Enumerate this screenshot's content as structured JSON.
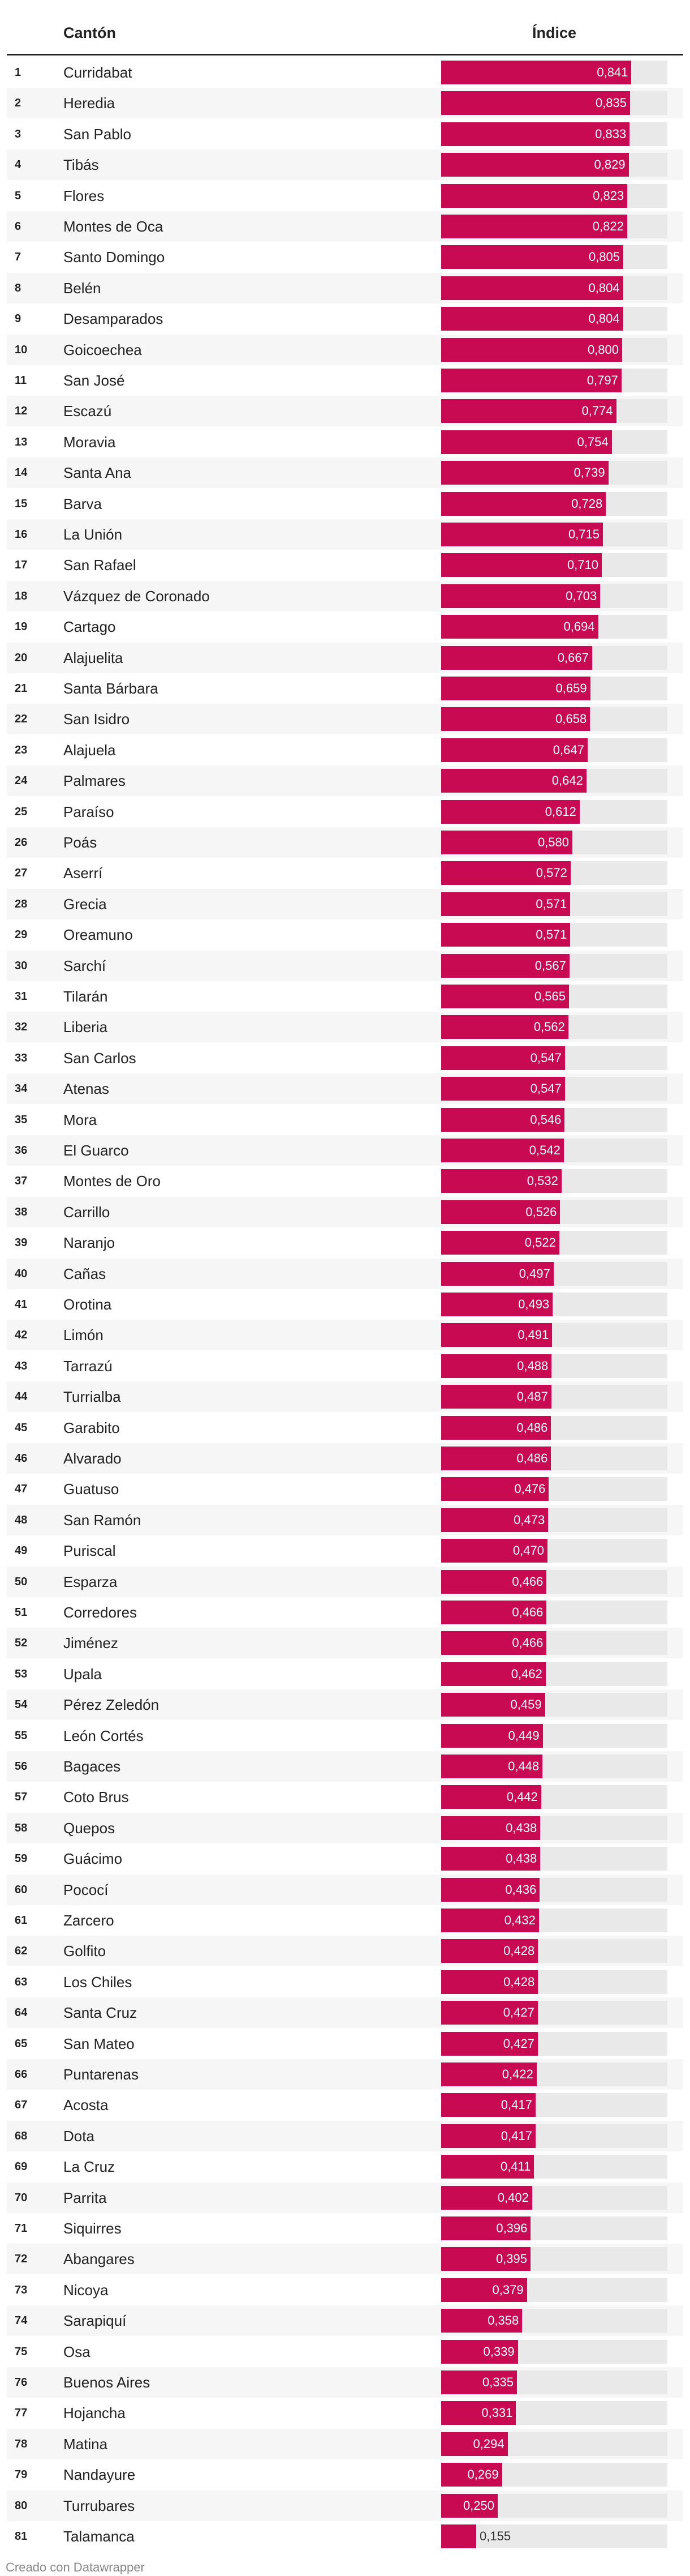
{
  "chart_data": {
    "type": "bar",
    "orientation": "horizontal",
    "columns": {
      "name": "Cantón",
      "value": "Índice"
    },
    "xlim": [
      0,
      1
    ],
    "rows": [
      {
        "rank": "1",
        "name": "Curridabat",
        "value": 0.841,
        "label": "0,841"
      },
      {
        "rank": "2",
        "name": "Heredia",
        "value": 0.835,
        "label": "0,835"
      },
      {
        "rank": "3",
        "name": "San Pablo",
        "value": 0.833,
        "label": "0,833"
      },
      {
        "rank": "4",
        "name": "Tibás",
        "value": 0.829,
        "label": "0,829"
      },
      {
        "rank": "5",
        "name": "Flores",
        "value": 0.823,
        "label": "0,823"
      },
      {
        "rank": "6",
        "name": "Montes de Oca",
        "value": 0.822,
        "label": "0,822"
      },
      {
        "rank": "7",
        "name": "Santo Domingo",
        "value": 0.805,
        "label": "0,805"
      },
      {
        "rank": "8",
        "name": "Belén",
        "value": 0.804,
        "label": "0,804"
      },
      {
        "rank": "9",
        "name": "Desamparados",
        "value": 0.804,
        "label": "0,804"
      },
      {
        "rank": "10",
        "name": "Goicoechea",
        "value": 0.8,
        "label": "0,800"
      },
      {
        "rank": "11",
        "name": "San José",
        "value": 0.797,
        "label": "0,797"
      },
      {
        "rank": "12",
        "name": "Escazú",
        "value": 0.774,
        "label": "0,774"
      },
      {
        "rank": "13",
        "name": "Moravia",
        "value": 0.754,
        "label": "0,754"
      },
      {
        "rank": "14",
        "name": "Santa Ana",
        "value": 0.739,
        "label": "0,739"
      },
      {
        "rank": "15",
        "name": "Barva",
        "value": 0.728,
        "label": "0,728"
      },
      {
        "rank": "16",
        "name": "La Unión",
        "value": 0.715,
        "label": "0,715"
      },
      {
        "rank": "17",
        "name": "San Rafael",
        "value": 0.71,
        "label": "0,710"
      },
      {
        "rank": "18",
        "name": "Vázquez de Coronado",
        "value": 0.703,
        "label": "0,703"
      },
      {
        "rank": "19",
        "name": "Cartago",
        "value": 0.694,
        "label": "0,694"
      },
      {
        "rank": "20",
        "name": "Alajuelita",
        "value": 0.667,
        "label": "0,667"
      },
      {
        "rank": "21",
        "name": "Santa Bárbara",
        "value": 0.659,
        "label": "0,659"
      },
      {
        "rank": "22",
        "name": "San Isidro",
        "value": 0.658,
        "label": "0,658"
      },
      {
        "rank": "23",
        "name": "Alajuela",
        "value": 0.647,
        "label": "0,647"
      },
      {
        "rank": "24",
        "name": "Palmares",
        "value": 0.642,
        "label": "0,642"
      },
      {
        "rank": "25",
        "name": "Paraíso",
        "value": 0.612,
        "label": "0,612"
      },
      {
        "rank": "26",
        "name": "Poás",
        "value": 0.58,
        "label": "0,580"
      },
      {
        "rank": "27",
        "name": "Aserrí",
        "value": 0.572,
        "label": "0,572"
      },
      {
        "rank": "28",
        "name": "Grecia",
        "value": 0.571,
        "label": "0,571"
      },
      {
        "rank": "29",
        "name": "Oreamuno",
        "value": 0.571,
        "label": "0,571"
      },
      {
        "rank": "30",
        "name": "Sarchí",
        "value": 0.567,
        "label": "0,567"
      },
      {
        "rank": "31",
        "name": "Tilarán",
        "value": 0.565,
        "label": "0,565"
      },
      {
        "rank": "32",
        "name": "Liberia",
        "value": 0.562,
        "label": "0,562"
      },
      {
        "rank": "33",
        "name": "San Carlos",
        "value": 0.547,
        "label": "0,547"
      },
      {
        "rank": "34",
        "name": "Atenas",
        "value": 0.547,
        "label": "0,547"
      },
      {
        "rank": "35",
        "name": "Mora",
        "value": 0.546,
        "label": "0,546"
      },
      {
        "rank": "36",
        "name": "El Guarco",
        "value": 0.542,
        "label": "0,542"
      },
      {
        "rank": "37",
        "name": "Montes de Oro",
        "value": 0.532,
        "label": "0,532"
      },
      {
        "rank": "38",
        "name": "Carrillo",
        "value": 0.526,
        "label": "0,526"
      },
      {
        "rank": "39",
        "name": "Naranjo",
        "value": 0.522,
        "label": "0,522"
      },
      {
        "rank": "40",
        "name": "Cañas",
        "value": 0.497,
        "label": "0,497"
      },
      {
        "rank": "41",
        "name": "Orotina",
        "value": 0.493,
        "label": "0,493"
      },
      {
        "rank": "42",
        "name": "Limón",
        "value": 0.491,
        "label": "0,491"
      },
      {
        "rank": "43",
        "name": "Tarrazú",
        "value": 0.488,
        "label": "0,488"
      },
      {
        "rank": "44",
        "name": "Turrialba",
        "value": 0.487,
        "label": "0,487"
      },
      {
        "rank": "45",
        "name": "Garabito",
        "value": 0.486,
        "label": "0,486"
      },
      {
        "rank": "46",
        "name": "Alvarado",
        "value": 0.486,
        "label": "0,486"
      },
      {
        "rank": "47",
        "name": "Guatuso",
        "value": 0.476,
        "label": "0,476"
      },
      {
        "rank": "48",
        "name": "San Ramón",
        "value": 0.473,
        "label": "0,473"
      },
      {
        "rank": "49",
        "name": "Puriscal",
        "value": 0.47,
        "label": "0,470"
      },
      {
        "rank": "50",
        "name": "Esparza",
        "value": 0.466,
        "label": "0,466"
      },
      {
        "rank": "51",
        "name": "Corredores",
        "value": 0.466,
        "label": "0,466"
      },
      {
        "rank": "52",
        "name": "Jiménez",
        "value": 0.466,
        "label": "0,466"
      },
      {
        "rank": "53",
        "name": "Upala",
        "value": 0.462,
        "label": "0,462"
      },
      {
        "rank": "54",
        "name": "Pérez Zeledón",
        "value": 0.459,
        "label": "0,459"
      },
      {
        "rank": "55",
        "name": "León Cortés",
        "value": 0.449,
        "label": "0,449"
      },
      {
        "rank": "56",
        "name": "Bagaces",
        "value": 0.448,
        "label": "0,448"
      },
      {
        "rank": "57",
        "name": "Coto Brus",
        "value": 0.442,
        "label": "0,442"
      },
      {
        "rank": "58",
        "name": "Quepos",
        "value": 0.438,
        "label": "0,438"
      },
      {
        "rank": "59",
        "name": "Guácimo",
        "value": 0.438,
        "label": "0,438"
      },
      {
        "rank": "60",
        "name": "Pococí",
        "value": 0.436,
        "label": "0,436"
      },
      {
        "rank": "61",
        "name": "Zarcero",
        "value": 0.432,
        "label": "0,432"
      },
      {
        "rank": "62",
        "name": "Golfito",
        "value": 0.428,
        "label": "0,428"
      },
      {
        "rank": "63",
        "name": "Los Chiles",
        "value": 0.428,
        "label": "0,428"
      },
      {
        "rank": "64",
        "name": "Santa Cruz",
        "value": 0.427,
        "label": "0,427"
      },
      {
        "rank": "65",
        "name": "San Mateo",
        "value": 0.427,
        "label": "0,427"
      },
      {
        "rank": "66",
        "name": "Puntarenas",
        "value": 0.422,
        "label": "0,422"
      },
      {
        "rank": "67",
        "name": "Acosta",
        "value": 0.417,
        "label": "0,417"
      },
      {
        "rank": "68",
        "name": "Dota",
        "value": 0.417,
        "label": "0,417"
      },
      {
        "rank": "69",
        "name": "La Cruz",
        "value": 0.411,
        "label": "0,411"
      },
      {
        "rank": "70",
        "name": "Parrita",
        "value": 0.402,
        "label": "0,402"
      },
      {
        "rank": "71",
        "name": "Siquirres",
        "value": 0.396,
        "label": "0,396"
      },
      {
        "rank": "72",
        "name": "Abangares",
        "value": 0.395,
        "label": "0,395"
      },
      {
        "rank": "73",
        "name": "Nicoya",
        "value": 0.379,
        "label": "0,379"
      },
      {
        "rank": "74",
        "name": "Sarapiquí",
        "value": 0.358,
        "label": "0,358"
      },
      {
        "rank": "75",
        "name": "Osa",
        "value": 0.339,
        "label": "0,339"
      },
      {
        "rank": "76",
        "name": "Buenos Aires",
        "value": 0.335,
        "label": "0,335"
      },
      {
        "rank": "77",
        "name": "Hojancha",
        "value": 0.331,
        "label": "0,331"
      },
      {
        "rank": "78",
        "name": "Matina",
        "value": 0.294,
        "label": "0,294"
      },
      {
        "rank": "79",
        "name": "Nandayure",
        "value": 0.269,
        "label": "0,269"
      },
      {
        "rank": "80",
        "name": "Turrubares",
        "value": 0.25,
        "label": "0,250"
      },
      {
        "rank": "81",
        "name": "Talamanca",
        "value": 0.155,
        "label": "0,155"
      }
    ],
    "colors": {
      "bar": "#c70a52",
      "track": "#e9e9e9",
      "row_alt": "#f6f6f6"
    }
  },
  "footer": {
    "credit": "Creado con Datawrapper"
  }
}
